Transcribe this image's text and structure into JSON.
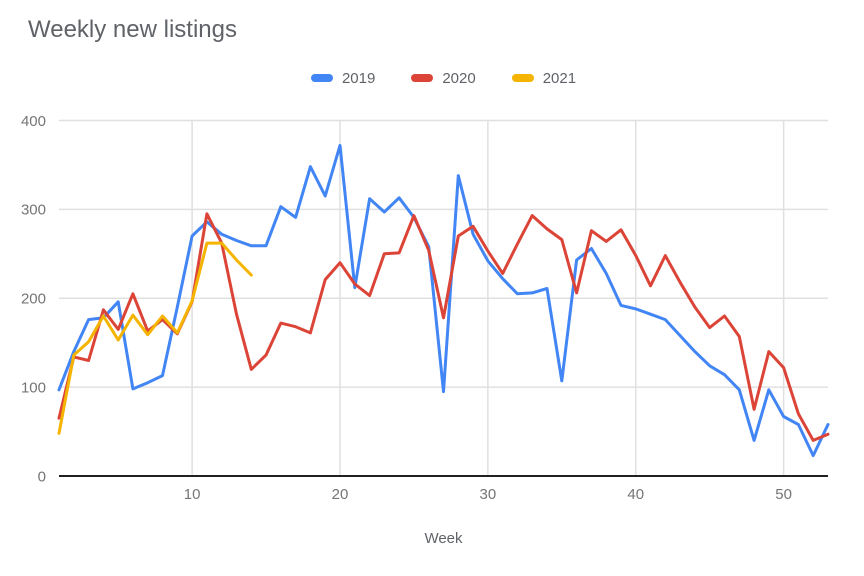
{
  "title": "Weekly new listings",
  "colors": {
    "background": "#ffffff",
    "title_text": "#5f6368",
    "tick_text": "#757575",
    "gridline": "#e0e0e0",
    "axis_line": "#212121",
    "series_2019": "#4285f4",
    "series_2020": "#db4437",
    "series_2021": "#f4b400"
  },
  "chart_data": {
    "type": "line",
    "title": "Weekly new listings",
    "xlabel": "Week",
    "ylabel": "",
    "xlim": [
      1,
      53
    ],
    "ylim": [
      0,
      400
    ],
    "x_ticks": [
      10,
      20,
      30,
      40,
      50
    ],
    "y_ticks": [
      0,
      100,
      200,
      300,
      400
    ],
    "grid": true,
    "legend_position": "top",
    "x": [
      1,
      2,
      3,
      4,
      5,
      6,
      7,
      8,
      9,
      10,
      11,
      12,
      13,
      14,
      15,
      16,
      17,
      18,
      19,
      20,
      21,
      22,
      23,
      24,
      25,
      26,
      27,
      28,
      29,
      30,
      31,
      32,
      33,
      34,
      35,
      36,
      37,
      38,
      39,
      40,
      41,
      42,
      43,
      44,
      45,
      46,
      47,
      48,
      49,
      50,
      51,
      52,
      53
    ],
    "series": [
      {
        "name": "2019",
        "color": "#4285f4",
        "values": [
          97,
          140,
          176,
          178,
          196,
          98,
          105,
          113,
          190,
          270,
          286,
          272,
          265,
          259,
          259,
          303,
          291,
          348,
          315,
          372,
          212,
          312,
          297,
          313,
          291,
          258,
          95,
          338,
          272,
          242,
          222,
          205,
          206,
          211,
          107,
          243,
          256,
          228,
          192,
          188,
          182,
          176,
          158,
          140,
          124,
          114,
          97,
          40,
          97,
          67,
          58,
          23,
          58
        ]
      },
      {
        "name": "2020",
        "color": "#db4437",
        "values": [
          65,
          134,
          130,
          187,
          165,
          205,
          163,
          176,
          160,
          196,
          295,
          262,
          182,
          120,
          136,
          172,
          168,
          161,
          221,
          240,
          216,
          203,
          250,
          251,
          293,
          254,
          178,
          270,
          281,
          253,
          228,
          261,
          293,
          278,
          266,
          206,
          276,
          264,
          277,
          248,
          214,
          248,
          218,
          190,
          167,
          180,
          157,
          75,
          140,
          122,
          70,
          40,
          47
        ]
      },
      {
        "name": "2021",
        "color": "#f4b400",
        "values": [
          48,
          136,
          151,
          180,
          153,
          181,
          159,
          180,
          161,
          197,
          262,
          262,
          243,
          226
        ]
      }
    ]
  }
}
